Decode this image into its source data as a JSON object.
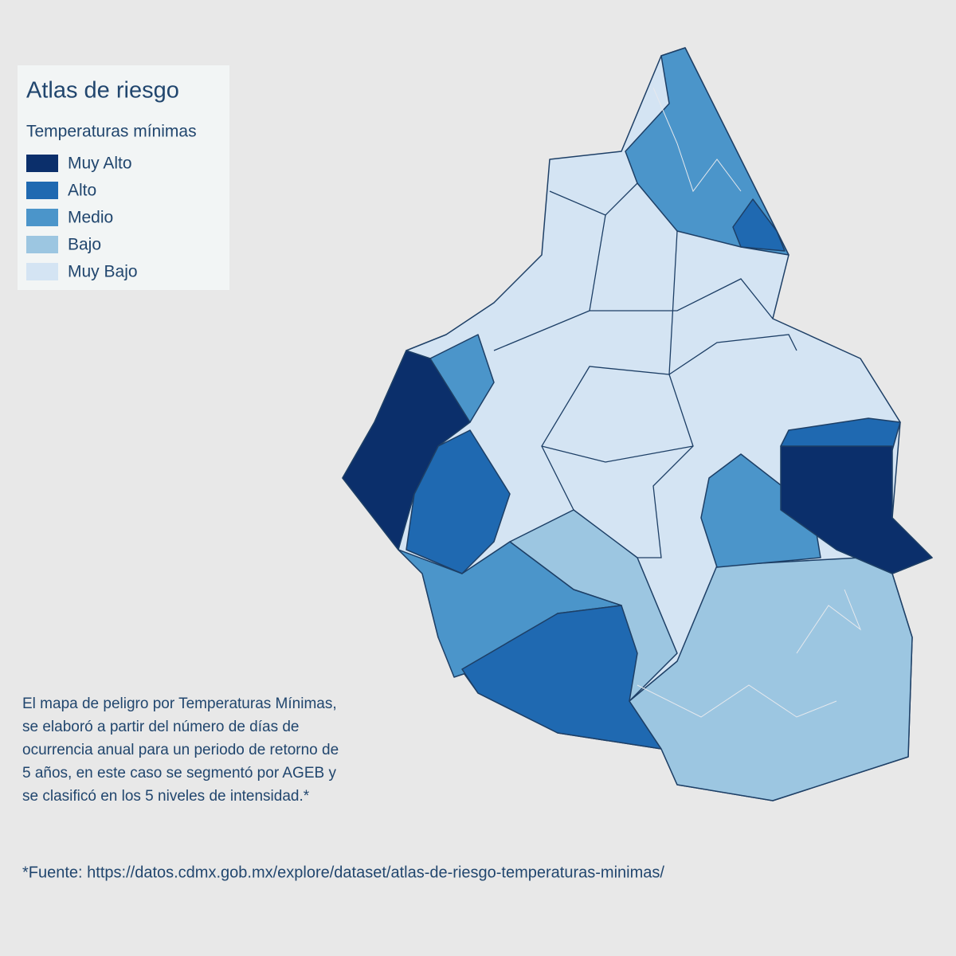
{
  "legend": {
    "title": "Atlas de riesgo",
    "subtitle": "Temperaturas mínimas",
    "items": [
      {
        "label": "Muy Alto",
        "color": "#0b2f6b"
      },
      {
        "label": "Alto",
        "color": "#1f69b1"
      },
      {
        "label": "Medio",
        "color": "#4b95ca"
      },
      {
        "label": "Bajo",
        "color": "#9cc6e1"
      },
      {
        "label": "Muy Bajo",
        "color": "#d4e4f3"
      }
    ]
  },
  "description": [
    "El mapa de peligro por Temperaturas Mínimas,",
    "se elaboró a partir del número de días de",
    "ocurrencia anual para un periodo de retorno de",
    "5 años, en este caso se segmentó por AGEB y",
    "se clasificó en los 5 niveles de intensidad.*"
  ],
  "source": "*Fuente: https://datos.cdmx.gob.mx/explore/dataset/atlas-de-riesgo-temperaturas-minimas/"
}
